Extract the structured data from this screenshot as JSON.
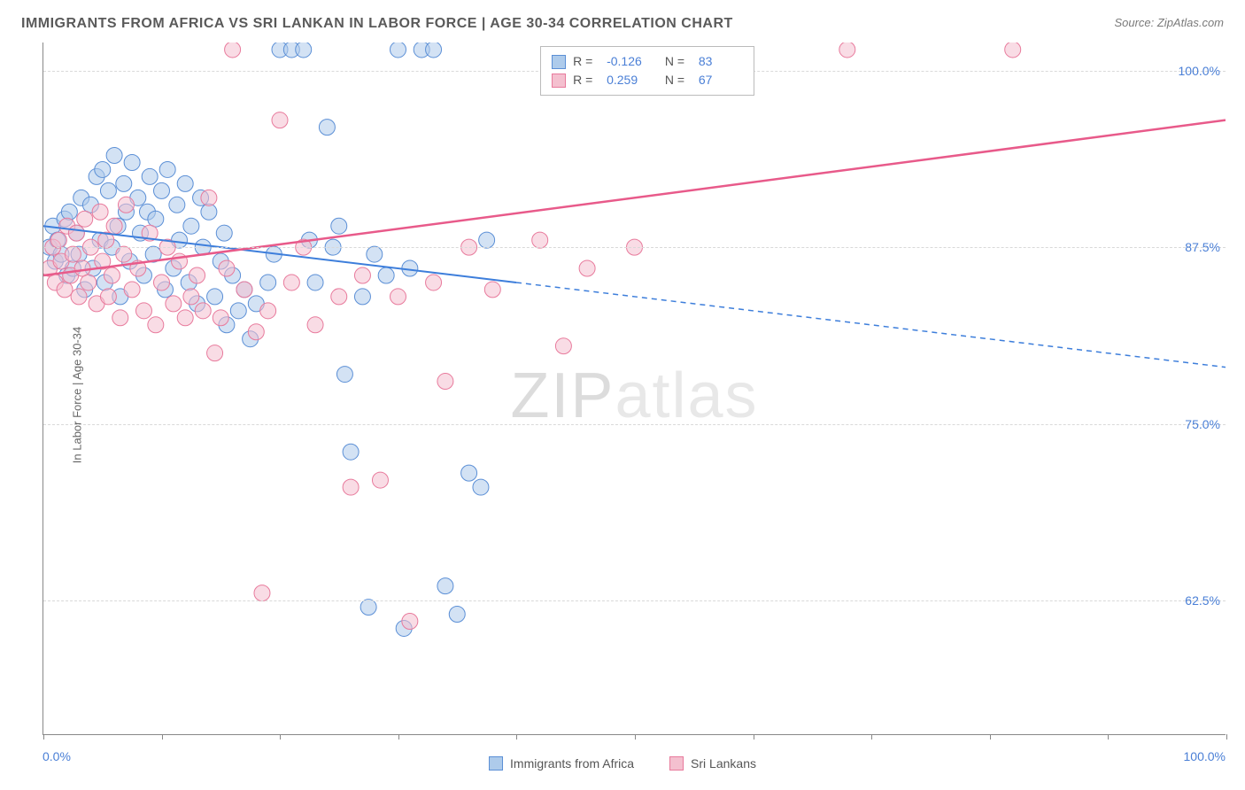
{
  "header": {
    "title": "IMMIGRANTS FROM AFRICA VS SRI LANKAN IN LABOR FORCE | AGE 30-34 CORRELATION CHART",
    "source": "Source: ZipAtlas.com"
  },
  "chart": {
    "type": "scatter",
    "ylabel": "In Labor Force | Age 30-34",
    "xlim": [
      0,
      100
    ],
    "ylim": [
      53,
      102
    ],
    "xtick_positions": [
      0,
      10,
      20,
      30,
      40,
      50,
      60,
      70,
      80,
      90,
      100
    ],
    "xtick_labeled": {
      "0": "0.0%",
      "100": "100.0%"
    },
    "ytick_positions": [
      62.5,
      75.0,
      87.5,
      100.0
    ],
    "ytick_labels": [
      "62.5%",
      "75.0%",
      "87.5%",
      "100.0%"
    ],
    "grid_color": "#d9d9d9",
    "background_color": "#ffffff",
    "axis_color": "#888888",
    "watermark": "ZIPatlas",
    "series": [
      {
        "name": "Immigrants from Africa",
        "label": "Immigrants from Africa",
        "color_fill": "#aecbeb",
        "color_stroke": "#5b8fd6",
        "marker_radius": 9,
        "fill_opacity": 0.55,
        "R": "-0.126",
        "N": "83",
        "regression": {
          "x1": 0,
          "y1": 89.0,
          "x2": 40,
          "y2": 85.0,
          "extrap_x2": 100,
          "extrap_y2": 79.0,
          "color": "#3d7edb",
          "width": 2
        },
        "points": [
          [
            0.5,
            87.5
          ],
          [
            0.8,
            89
          ],
          [
            1.0,
            86.5
          ],
          [
            1.2,
            88
          ],
          [
            1.5,
            87
          ],
          [
            1.8,
            89.5
          ],
          [
            2.0,
            85.5
          ],
          [
            2.2,
            90
          ],
          [
            2.5,
            86
          ],
          [
            2.8,
            88.5
          ],
          [
            3.0,
            87
          ],
          [
            3.2,
            91
          ],
          [
            3.5,
            84.5
          ],
          [
            4.0,
            90.5
          ],
          [
            4.2,
            86
          ],
          [
            4.5,
            92.5
          ],
          [
            4.8,
            88
          ],
          [
            5.0,
            93
          ],
          [
            5.2,
            85
          ],
          [
            5.5,
            91.5
          ],
          [
            5.8,
            87.5
          ],
          [
            6.0,
            94
          ],
          [
            6.3,
            89
          ],
          [
            6.5,
            84
          ],
          [
            6.8,
            92
          ],
          [
            7.0,
            90
          ],
          [
            7.3,
            86.5
          ],
          [
            7.5,
            93.5
          ],
          [
            8.0,
            91
          ],
          [
            8.2,
            88.5
          ],
          [
            8.5,
            85.5
          ],
          [
            8.8,
            90
          ],
          [
            9.0,
            92.5
          ],
          [
            9.3,
            87
          ],
          [
            9.5,
            89.5
          ],
          [
            10.0,
            91.5
          ],
          [
            10.3,
            84.5
          ],
          [
            10.5,
            93
          ],
          [
            11.0,
            86
          ],
          [
            11.3,
            90.5
          ],
          [
            11.5,
            88
          ],
          [
            12.0,
            92
          ],
          [
            12.3,
            85
          ],
          [
            12.5,
            89
          ],
          [
            13.0,
            83.5
          ],
          [
            13.3,
            91
          ],
          [
            13.5,
            87.5
          ],
          [
            14.0,
            90
          ],
          [
            14.5,
            84
          ],
          [
            15.0,
            86.5
          ],
          [
            15.3,
            88.5
          ],
          [
            15.5,
            82
          ],
          [
            16.0,
            85.5
          ],
          [
            16.5,
            83
          ],
          [
            17.0,
            84.5
          ],
          [
            17.5,
            81
          ],
          [
            18.0,
            83.5
          ],
          [
            19.0,
            85
          ],
          [
            19.5,
            87
          ],
          [
            20.0,
            101.5
          ],
          [
            21.0,
            101.5
          ],
          [
            22.0,
            101.5
          ],
          [
            22.5,
            88
          ],
          [
            23.0,
            85
          ],
          [
            24.0,
            96
          ],
          [
            24.5,
            87.5
          ],
          [
            25.0,
            89
          ],
          [
            25.5,
            78.5
          ],
          [
            26.0,
            73
          ],
          [
            27.0,
            84
          ],
          [
            27.5,
            62
          ],
          [
            28.0,
            87
          ],
          [
            29.0,
            85.5
          ],
          [
            30.0,
            101.5
          ],
          [
            31.0,
            86
          ],
          [
            32.0,
            101.5
          ],
          [
            33.0,
            101.5
          ],
          [
            34.0,
            63.5
          ],
          [
            35.0,
            61.5
          ],
          [
            36.0,
            71.5
          ],
          [
            37.0,
            70.5
          ],
          [
            30.5,
            60.5
          ],
          [
            37.5,
            88
          ]
        ]
      },
      {
        "name": "Sri Lankans",
        "label": "Sri Lankans",
        "color_fill": "#f4c0cf",
        "color_stroke": "#e87a9c",
        "marker_radius": 9,
        "fill_opacity": 0.55,
        "R": "0.259",
        "N": "67",
        "regression": {
          "x1": 0,
          "y1": 85.5,
          "x2": 100,
          "y2": 96.5,
          "color": "#e85a8a",
          "width": 2.5
        },
        "points": [
          [
            0.5,
            86
          ],
          [
            0.8,
            87.5
          ],
          [
            1.0,
            85
          ],
          [
            1.3,
            88
          ],
          [
            1.5,
            86.5
          ],
          [
            1.8,
            84.5
          ],
          [
            2.0,
            89
          ],
          [
            2.3,
            85.5
          ],
          [
            2.5,
            87
          ],
          [
            2.8,
            88.5
          ],
          [
            3.0,
            84
          ],
          [
            3.3,
            86
          ],
          [
            3.5,
            89.5
          ],
          [
            3.8,
            85
          ],
          [
            4.0,
            87.5
          ],
          [
            4.5,
            83.5
          ],
          [
            4.8,
            90
          ],
          [
            5.0,
            86.5
          ],
          [
            5.3,
            88
          ],
          [
            5.5,
            84
          ],
          [
            5.8,
            85.5
          ],
          [
            6.0,
            89
          ],
          [
            6.5,
            82.5
          ],
          [
            6.8,
            87
          ],
          [
            7.0,
            90.5
          ],
          [
            7.5,
            84.5
          ],
          [
            8.0,
            86
          ],
          [
            8.5,
            83
          ],
          [
            9.0,
            88.5
          ],
          [
            9.5,
            82
          ],
          [
            10.0,
            85
          ],
          [
            10.5,
            87.5
          ],
          [
            11.0,
            83.5
          ],
          [
            11.5,
            86.5
          ],
          [
            12.0,
            82.5
          ],
          [
            12.5,
            84
          ],
          [
            13.0,
            85.5
          ],
          [
            13.5,
            83
          ],
          [
            14.0,
            91
          ],
          [
            14.5,
            80
          ],
          [
            15.0,
            82.5
          ],
          [
            15.5,
            86
          ],
          [
            16.0,
            101.5
          ],
          [
            17.0,
            84.5
          ],
          [
            18.0,
            81.5
          ],
          [
            19.0,
            83
          ],
          [
            20.0,
            96.5
          ],
          [
            21.0,
            85
          ],
          [
            22.0,
            87.5
          ],
          [
            23.0,
            82
          ],
          [
            25.0,
            84
          ],
          [
            26.0,
            70.5
          ],
          [
            27.0,
            85.5
          ],
          [
            28.5,
            71
          ],
          [
            30.0,
            84
          ],
          [
            31.0,
            61
          ],
          [
            33.0,
            85
          ],
          [
            34.0,
            78
          ],
          [
            36.0,
            87.5
          ],
          [
            38.0,
            84.5
          ],
          [
            42.0,
            88
          ],
          [
            44.0,
            80.5
          ],
          [
            46.0,
            86
          ],
          [
            50.0,
            87.5
          ],
          [
            68.0,
            101.5
          ],
          [
            82.0,
            101.5
          ],
          [
            18.5,
            63
          ]
        ]
      }
    ],
    "legend_bottom": {
      "items": [
        {
          "label": "Immigrants from Africa",
          "fill": "#aecbeb",
          "stroke": "#5b8fd6"
        },
        {
          "label": "Sri Lankans",
          "fill": "#f4c0cf",
          "stroke": "#e87a9c"
        }
      ]
    },
    "legend_box": {
      "pos_left_pct": 42,
      "pos_top_pct": 1,
      "rows": [
        {
          "fill": "#aecbeb",
          "stroke": "#5b8fd6",
          "R": "-0.126",
          "N": "83"
        },
        {
          "fill": "#f4c0cf",
          "stroke": "#e87a9c",
          "R": "0.259",
          "N": "67"
        }
      ]
    }
  }
}
